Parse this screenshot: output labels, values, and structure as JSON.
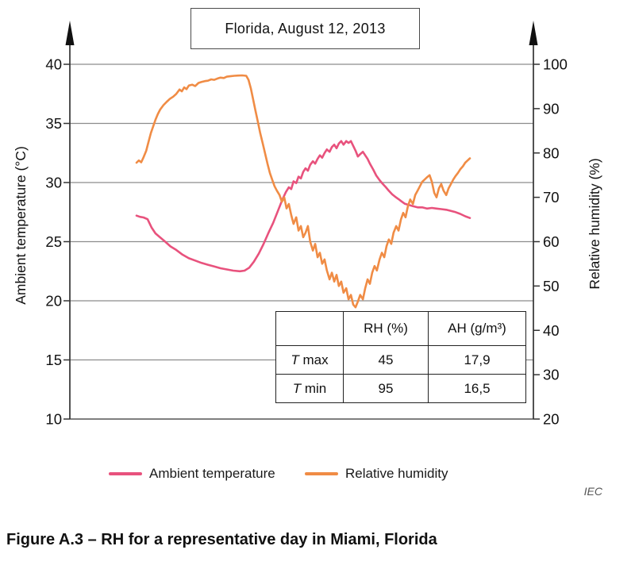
{
  "title_box": {
    "text": "Florida, August 12, 2013"
  },
  "credit": "IEC",
  "caption": "Figure A.3 – RH for a representative day in Miami, Florida",
  "legend": [
    {
      "label": "Ambient temperature",
      "color": "#e8527d"
    },
    {
      "label": "Relative humidity",
      "color": "#f08c45"
    }
  ],
  "inset_table": {
    "headers": [
      "",
      "RH (%)",
      "AH (g/m³)"
    ],
    "rows": [
      {
        "label_italic": "T",
        "label_rest": "max",
        "rh": "45",
        "ah": "17,9"
      },
      {
        "label_italic": "T",
        "label_rest": "min",
        "rh": "95",
        "ah": "16,5"
      }
    ]
  },
  "chart_data": {
    "type": "line",
    "title": "Florida, August 12, 2013",
    "grid": "horizontal",
    "x_axis": {
      "visible": false
    },
    "left_axis": {
      "label": "Ambient temperature (°C)",
      "min": 10,
      "max": 40,
      "ticks": [
        40,
        35,
        30,
        25,
        20,
        15,
        10
      ]
    },
    "right_axis": {
      "label": "Relative humidity (%)",
      "min": 20,
      "max": 100,
      "ticks": [
        100,
        90,
        80,
        70,
        60,
        50,
        40,
        30,
        20
      ]
    },
    "series": [
      {
        "name": "Ambient temperature",
        "axis": "left",
        "color": "#e8527d",
        "points": [
          [
            0,
            27.2
          ],
          [
            0.01,
            27.1
          ],
          [
            0.021,
            27.05
          ],
          [
            0.033,
            26.9
          ],
          [
            0.045,
            26.2
          ],
          [
            0.057,
            25.7
          ],
          [
            0.069,
            25.4
          ],
          [
            0.086,
            25.0
          ],
          [
            0.102,
            24.6
          ],
          [
            0.119,
            24.3
          ],
          [
            0.138,
            23.9
          ],
          [
            0.157,
            23.6
          ],
          [
            0.176,
            23.4
          ],
          [
            0.195,
            23.2
          ],
          [
            0.214,
            23.05
          ],
          [
            0.233,
            22.9
          ],
          [
            0.252,
            22.75
          ],
          [
            0.271,
            22.65
          ],
          [
            0.29,
            22.55
          ],
          [
            0.31,
            22.5
          ],
          [
            0.324,
            22.55
          ],
          [
            0.338,
            22.8
          ],
          [
            0.352,
            23.3
          ],
          [
            0.367,
            24.0
          ],
          [
            0.381,
            24.8
          ],
          [
            0.395,
            25.7
          ],
          [
            0.41,
            26.6
          ],
          [
            0.424,
            27.6
          ],
          [
            0.438,
            28.6
          ],
          [
            0.448,
            29.2
          ],
          [
            0.457,
            29.6
          ],
          [
            0.464,
            29.45
          ],
          [
            0.471,
            30.1
          ],
          [
            0.479,
            29.95
          ],
          [
            0.486,
            30.5
          ],
          [
            0.493,
            30.35
          ],
          [
            0.5,
            30.9
          ],
          [
            0.507,
            31.2
          ],
          [
            0.514,
            31.0
          ],
          [
            0.521,
            31.5
          ],
          [
            0.529,
            31.8
          ],
          [
            0.536,
            31.6
          ],
          [
            0.543,
            32.0
          ],
          [
            0.55,
            32.3
          ],
          [
            0.557,
            32.1
          ],
          [
            0.564,
            32.5
          ],
          [
            0.571,
            32.8
          ],
          [
            0.579,
            32.6
          ],
          [
            0.586,
            33.0
          ],
          [
            0.593,
            33.2
          ],
          [
            0.6,
            32.9
          ],
          [
            0.607,
            33.3
          ],
          [
            0.614,
            33.5
          ],
          [
            0.621,
            33.2
          ],
          [
            0.629,
            33.5
          ],
          [
            0.636,
            33.35
          ],
          [
            0.643,
            33.5
          ],
          [
            0.65,
            33.1
          ],
          [
            0.657,
            32.7
          ],
          [
            0.664,
            32.2
          ],
          [
            0.671,
            32.4
          ],
          [
            0.679,
            32.6
          ],
          [
            0.686,
            32.3
          ],
          [
            0.693,
            32.0
          ],
          [
            0.7,
            31.6
          ],
          [
            0.71,
            31.1
          ],
          [
            0.719,
            30.6
          ],
          [
            0.729,
            30.2
          ],
          [
            0.738,
            29.9
          ],
          [
            0.748,
            29.6
          ],
          [
            0.757,
            29.3
          ],
          [
            0.767,
            29.0
          ],
          [
            0.776,
            28.8
          ],
          [
            0.786,
            28.6
          ],
          [
            0.795,
            28.4
          ],
          [
            0.805,
            28.2
          ],
          [
            0.817,
            28.1
          ],
          [
            0.829,
            28.0
          ],
          [
            0.843,
            27.9
          ],
          [
            0.857,
            27.9
          ],
          [
            0.871,
            27.8
          ],
          [
            0.886,
            27.85
          ],
          [
            0.9,
            27.8
          ],
          [
            0.914,
            27.75
          ],
          [
            0.929,
            27.7
          ],
          [
            0.943,
            27.6
          ],
          [
            0.957,
            27.5
          ],
          [
            0.971,
            27.35
          ],
          [
            0.986,
            27.15
          ],
          [
            1,
            27.0
          ]
        ]
      },
      {
        "name": "Relative humidity",
        "axis": "right",
        "color": "#f08c45",
        "points": [
          [
            0,
            77.8
          ],
          [
            0.007,
            78.3
          ],
          [
            0.014,
            77.9
          ],
          [
            0.021,
            79.0
          ],
          [
            0.029,
            80.5
          ],
          [
            0.036,
            82.5
          ],
          [
            0.043,
            84.5
          ],
          [
            0.05,
            86.0
          ],
          [
            0.057,
            87.5
          ],
          [
            0.064,
            88.8
          ],
          [
            0.071,
            89.8
          ],
          [
            0.081,
            90.8
          ],
          [
            0.09,
            91.5
          ],
          [
            0.1,
            92.2
          ],
          [
            0.11,
            92.7
          ],
          [
            0.119,
            93.3
          ],
          [
            0.129,
            94.3
          ],
          [
            0.136,
            93.9
          ],
          [
            0.143,
            94.8
          ],
          [
            0.15,
            94.4
          ],
          [
            0.157,
            95.2
          ],
          [
            0.167,
            95.4
          ],
          [
            0.176,
            95.1
          ],
          [
            0.186,
            95.8
          ],
          [
            0.195,
            96.0
          ],
          [
            0.205,
            96.2
          ],
          [
            0.214,
            96.3
          ],
          [
            0.224,
            96.6
          ],
          [
            0.233,
            96.5
          ],
          [
            0.243,
            96.8
          ],
          [
            0.252,
            97.0
          ],
          [
            0.262,
            96.9
          ],
          [
            0.271,
            97.2
          ],
          [
            0.281,
            97.3
          ],
          [
            0.293,
            97.4
          ],
          [
            0.305,
            97.45
          ],
          [
            0.317,
            97.5
          ],
          [
            0.329,
            97.4
          ],
          [
            0.336,
            96.5
          ],
          [
            0.343,
            94.5
          ],
          [
            0.35,
            92.0
          ],
          [
            0.357,
            89.5
          ],
          [
            0.364,
            87.0
          ],
          [
            0.371,
            84.5
          ],
          [
            0.379,
            82.0
          ],
          [
            0.386,
            79.8
          ],
          [
            0.393,
            77.5
          ],
          [
            0.4,
            75.5
          ],
          [
            0.407,
            74.0
          ],
          [
            0.414,
            72.5
          ],
          [
            0.421,
            71.5
          ],
          [
            0.429,
            70.5
          ],
          [
            0.436,
            69.0
          ],
          [
            0.443,
            70.0
          ],
          [
            0.45,
            67.5
          ],
          [
            0.457,
            68.5
          ],
          [
            0.464,
            66.0
          ],
          [
            0.471,
            64.0
          ],
          [
            0.479,
            65.5
          ],
          [
            0.486,
            62.5
          ],
          [
            0.493,
            63.5
          ],
          [
            0.5,
            61.0
          ],
          [
            0.507,
            62.0
          ],
          [
            0.514,
            63.5
          ],
          [
            0.521,
            60.0
          ],
          [
            0.529,
            58.0
          ],
          [
            0.536,
            59.5
          ],
          [
            0.543,
            56.5
          ],
          [
            0.55,
            57.5
          ],
          [
            0.557,
            55.0
          ],
          [
            0.564,
            56.0
          ],
          [
            0.571,
            53.5
          ],
          [
            0.579,
            51.5
          ],
          [
            0.586,
            53.0
          ],
          [
            0.593,
            51.0
          ],
          [
            0.6,
            52.5
          ],
          [
            0.607,
            50.0
          ],
          [
            0.614,
            51.0
          ],
          [
            0.621,
            48.5
          ],
          [
            0.629,
            49.5
          ],
          [
            0.636,
            47.0
          ],
          [
            0.643,
            48.0
          ],
          [
            0.65,
            45.8
          ],
          [
            0.657,
            45.2
          ],
          [
            0.664,
            46.5
          ],
          [
            0.671,
            48.0
          ],
          [
            0.679,
            47.0
          ],
          [
            0.686,
            49.5
          ],
          [
            0.693,
            51.5
          ],
          [
            0.7,
            50.5
          ],
          [
            0.707,
            53.0
          ],
          [
            0.714,
            54.5
          ],
          [
            0.721,
            53.5
          ],
          [
            0.729,
            56.0
          ],
          [
            0.736,
            57.5
          ],
          [
            0.743,
            56.5
          ],
          [
            0.75,
            59.0
          ],
          [
            0.757,
            60.5
          ],
          [
            0.764,
            59.5
          ],
          [
            0.771,
            62.0
          ],
          [
            0.779,
            63.5
          ],
          [
            0.786,
            62.5
          ],
          [
            0.793,
            65.0
          ],
          [
            0.8,
            66.5
          ],
          [
            0.807,
            65.5
          ],
          [
            0.814,
            68.0
          ],
          [
            0.821,
            69.5
          ],
          [
            0.829,
            68.5
          ],
          [
            0.836,
            70.5
          ],
          [
            0.843,
            71.5
          ],
          [
            0.85,
            72.5
          ],
          [
            0.857,
            73.5
          ],
          [
            0.864,
            74.0
          ],
          [
            0.871,
            74.5
          ],
          [
            0.879,
            75.0
          ],
          [
            0.886,
            73.5
          ],
          [
            0.893,
            71.0
          ],
          [
            0.9,
            70.0
          ],
          [
            0.907,
            72.0
          ],
          [
            0.914,
            73.0
          ],
          [
            0.921,
            71.5
          ],
          [
            0.929,
            70.5
          ],
          [
            0.936,
            72.0
          ],
          [
            0.943,
            73.0
          ],
          [
            0.95,
            74.0
          ],
          [
            0.957,
            74.8
          ],
          [
            0.964,
            75.5
          ],
          [
            0.971,
            76.3
          ],
          [
            0.979,
            77.0
          ],
          [
            0.986,
            77.8
          ],
          [
            0.993,
            78.3
          ],
          [
            1,
            78.8
          ]
        ]
      }
    ]
  }
}
